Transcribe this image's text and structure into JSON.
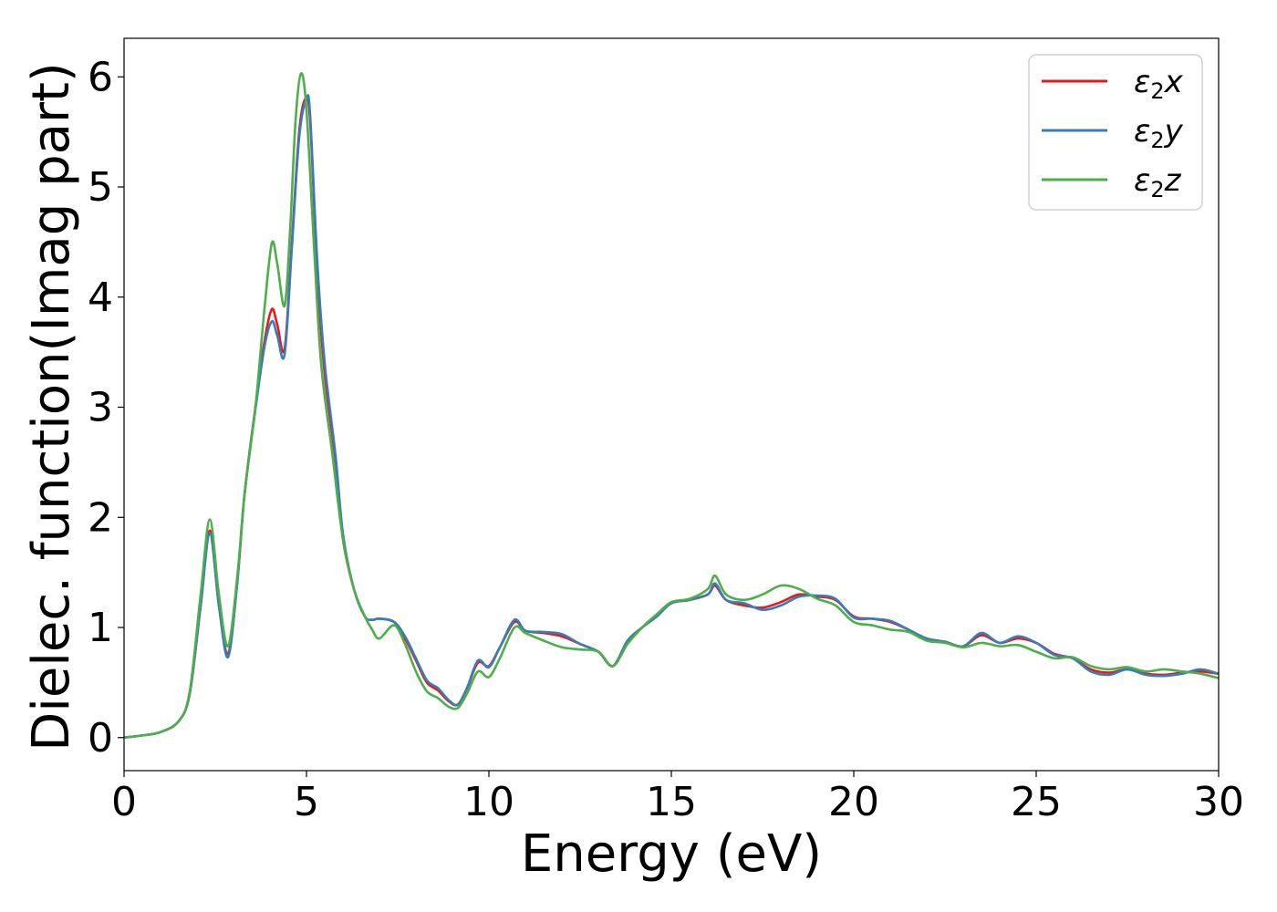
{
  "chart_data": {
    "type": "line",
    "title": "",
    "xlabel": "Energy (eV)",
    "ylabel": "Dielec. function(Imag part)",
    "xlim": [
      0,
      30
    ],
    "ylim": [
      -0.3,
      6.35
    ],
    "xticks": [
      0,
      5,
      10,
      15,
      20,
      25,
      30
    ],
    "yticks": [
      0,
      1,
      2,
      3,
      4,
      5,
      6
    ],
    "grid": false,
    "legend_position": "top-right",
    "series": [
      {
        "name": "ε₂x",
        "legend_base": "ε",
        "legend_sub": "2",
        "legend_var": "x",
        "color": "#e41a1c",
        "points": [
          [
            0,
            0
          ],
          [
            0.5,
            0.02
          ],
          [
            1.0,
            0.05
          ],
          [
            1.5,
            0.15
          ],
          [
            1.8,
            0.4
          ],
          [
            2.1,
            1.2
          ],
          [
            2.35,
            1.88
          ],
          [
            2.6,
            1.2
          ],
          [
            2.85,
            0.76
          ],
          [
            3.1,
            1.4
          ],
          [
            3.3,
            2.2
          ],
          [
            3.6,
            3.0
          ],
          [
            3.85,
            3.6
          ],
          [
            4.05,
            3.89
          ],
          [
            4.2,
            3.75
          ],
          [
            4.4,
            3.53
          ],
          [
            4.6,
            4.5
          ],
          [
            4.8,
            5.5
          ],
          [
            4.97,
            5.8
          ],
          [
            5.1,
            5.6
          ],
          [
            5.3,
            4.2
          ],
          [
            5.5,
            3.3
          ],
          [
            5.8,
            2.5
          ],
          [
            6.0,
            1.8
          ],
          [
            6.3,
            1.35
          ],
          [
            6.6,
            1.1
          ],
          [
            6.8,
            1.07
          ],
          [
            7.0,
            1.08
          ],
          [
            7.4,
            1.05
          ],
          [
            7.7,
            0.9
          ],
          [
            8.0,
            0.7
          ],
          [
            8.3,
            0.5
          ],
          [
            8.6,
            0.43
          ],
          [
            8.9,
            0.33
          ],
          [
            9.15,
            0.3
          ],
          [
            9.4,
            0.45
          ],
          [
            9.7,
            0.68
          ],
          [
            10.0,
            0.65
          ],
          [
            10.3,
            0.82
          ],
          [
            10.7,
            1.05
          ],
          [
            11.0,
            0.97
          ],
          [
            11.5,
            0.95
          ],
          [
            12.0,
            0.92
          ],
          [
            12.5,
            0.85
          ],
          [
            13.0,
            0.78
          ],
          [
            13.4,
            0.65
          ],
          [
            13.8,
            0.88
          ],
          [
            14.2,
            1.0
          ],
          [
            14.6,
            1.1
          ],
          [
            15.0,
            1.22
          ],
          [
            15.5,
            1.25
          ],
          [
            16.0,
            1.3
          ],
          [
            16.2,
            1.38
          ],
          [
            16.5,
            1.25
          ],
          [
            17.0,
            1.2
          ],
          [
            17.5,
            1.18
          ],
          [
            18.0,
            1.23
          ],
          [
            18.5,
            1.3
          ],
          [
            19.0,
            1.28
          ],
          [
            19.5,
            1.25
          ],
          [
            20.0,
            1.1
          ],
          [
            20.5,
            1.08
          ],
          [
            21.0,
            1.05
          ],
          [
            21.5,
            0.98
          ],
          [
            22.0,
            0.9
          ],
          [
            22.5,
            0.87
          ],
          [
            23.0,
            0.83
          ],
          [
            23.5,
            0.93
          ],
          [
            24.0,
            0.86
          ],
          [
            24.5,
            0.9
          ],
          [
            25.0,
            0.86
          ],
          [
            25.5,
            0.76
          ],
          [
            26.0,
            0.72
          ],
          [
            26.5,
            0.62
          ],
          [
            27.0,
            0.59
          ],
          [
            27.5,
            0.62
          ],
          [
            28.0,
            0.58
          ],
          [
            28.5,
            0.57
          ],
          [
            29.0,
            0.59
          ],
          [
            29.5,
            0.6
          ],
          [
            30.0,
            0.58
          ]
        ]
      },
      {
        "name": "ε₂y",
        "legend_base": "ε",
        "legend_sub": "2",
        "legend_var": "y",
        "color": "#377eb8",
        "points": [
          [
            0,
            0
          ],
          [
            0.5,
            0.02
          ],
          [
            1.0,
            0.05
          ],
          [
            1.5,
            0.15
          ],
          [
            1.8,
            0.4
          ],
          [
            2.1,
            1.2
          ],
          [
            2.35,
            1.85
          ],
          [
            2.6,
            1.2
          ],
          [
            2.85,
            0.73
          ],
          [
            3.1,
            1.4
          ],
          [
            3.3,
            2.2
          ],
          [
            3.6,
            2.98
          ],
          [
            3.85,
            3.55
          ],
          [
            4.05,
            3.78
          ],
          [
            4.2,
            3.65
          ],
          [
            4.4,
            3.48
          ],
          [
            4.6,
            4.45
          ],
          [
            4.8,
            5.45
          ],
          [
            5.0,
            5.8
          ],
          [
            5.1,
            5.65
          ],
          [
            5.3,
            4.3
          ],
          [
            5.5,
            3.4
          ],
          [
            5.8,
            2.55
          ],
          [
            6.0,
            1.85
          ],
          [
            6.3,
            1.35
          ],
          [
            6.6,
            1.1
          ],
          [
            6.8,
            1.07
          ],
          [
            7.0,
            1.08
          ],
          [
            7.4,
            1.05
          ],
          [
            7.7,
            0.92
          ],
          [
            8.0,
            0.72
          ],
          [
            8.3,
            0.52
          ],
          [
            8.6,
            0.45
          ],
          [
            8.9,
            0.34
          ],
          [
            9.15,
            0.3
          ],
          [
            9.4,
            0.45
          ],
          [
            9.7,
            0.7
          ],
          [
            10.0,
            0.64
          ],
          [
            10.3,
            0.82
          ],
          [
            10.7,
            1.07
          ],
          [
            11.0,
            0.97
          ],
          [
            11.5,
            0.96
          ],
          [
            12.0,
            0.94
          ],
          [
            12.5,
            0.85
          ],
          [
            13.0,
            0.78
          ],
          [
            13.4,
            0.65
          ],
          [
            13.8,
            0.88
          ],
          [
            14.2,
            1.0
          ],
          [
            14.6,
            1.1
          ],
          [
            15.0,
            1.22
          ],
          [
            15.5,
            1.25
          ],
          [
            16.0,
            1.3
          ],
          [
            16.2,
            1.4
          ],
          [
            16.5,
            1.25
          ],
          [
            17.0,
            1.22
          ],
          [
            17.5,
            1.16
          ],
          [
            18.0,
            1.2
          ],
          [
            18.5,
            1.28
          ],
          [
            19.0,
            1.29
          ],
          [
            19.5,
            1.26
          ],
          [
            20.0,
            1.09
          ],
          [
            20.5,
            1.08
          ],
          [
            21.0,
            1.06
          ],
          [
            21.5,
            0.98
          ],
          [
            22.0,
            0.9
          ],
          [
            22.5,
            0.87
          ],
          [
            23.0,
            0.83
          ],
          [
            23.5,
            0.95
          ],
          [
            24.0,
            0.86
          ],
          [
            24.5,
            0.92
          ],
          [
            25.0,
            0.86
          ],
          [
            25.5,
            0.75
          ],
          [
            26.0,
            0.72
          ],
          [
            26.5,
            0.6
          ],
          [
            27.0,
            0.57
          ],
          [
            27.5,
            0.62
          ],
          [
            28.0,
            0.57
          ],
          [
            28.5,
            0.56
          ],
          [
            29.0,
            0.58
          ],
          [
            29.5,
            0.62
          ],
          [
            30.0,
            0.58
          ]
        ]
      },
      {
        "name": "ε₂z",
        "legend_base": "ε",
        "legend_sub": "2",
        "legend_var": "z",
        "color": "#4daf4a",
        "points": [
          [
            0,
            0
          ],
          [
            0.5,
            0.02
          ],
          [
            1.0,
            0.05
          ],
          [
            1.5,
            0.15
          ],
          [
            1.8,
            0.42
          ],
          [
            2.1,
            1.3
          ],
          [
            2.35,
            1.98
          ],
          [
            2.6,
            1.3
          ],
          [
            2.85,
            0.83
          ],
          [
            3.1,
            1.45
          ],
          [
            3.3,
            2.2
          ],
          [
            3.6,
            3.0
          ],
          [
            3.85,
            3.9
          ],
          [
            4.05,
            4.49
          ],
          [
            4.2,
            4.3
          ],
          [
            4.4,
            3.92
          ],
          [
            4.55,
            4.6
          ],
          [
            4.7,
            5.6
          ],
          [
            4.85,
            6.03
          ],
          [
            5.0,
            5.7
          ],
          [
            5.2,
            4.5
          ],
          [
            5.4,
            3.4
          ],
          [
            5.7,
            2.6
          ],
          [
            6.0,
            1.8
          ],
          [
            6.3,
            1.35
          ],
          [
            6.6,
            1.1
          ],
          [
            6.8,
            0.98
          ],
          [
            7.0,
            0.9
          ],
          [
            7.4,
            1.02
          ],
          [
            7.7,
            0.85
          ],
          [
            8.0,
            0.6
          ],
          [
            8.3,
            0.42
          ],
          [
            8.6,
            0.36
          ],
          [
            8.9,
            0.28
          ],
          [
            9.15,
            0.27
          ],
          [
            9.4,
            0.4
          ],
          [
            9.7,
            0.6
          ],
          [
            10.0,
            0.55
          ],
          [
            10.3,
            0.72
          ],
          [
            10.7,
            1.0
          ],
          [
            11.0,
            0.95
          ],
          [
            11.5,
            0.88
          ],
          [
            12.0,
            0.82
          ],
          [
            12.5,
            0.8
          ],
          [
            13.0,
            0.78
          ],
          [
            13.4,
            0.65
          ],
          [
            13.8,
            0.85
          ],
          [
            14.2,
            1.0
          ],
          [
            14.6,
            1.12
          ],
          [
            15.0,
            1.23
          ],
          [
            15.5,
            1.26
          ],
          [
            16.0,
            1.35
          ],
          [
            16.2,
            1.47
          ],
          [
            16.5,
            1.3
          ],
          [
            17.0,
            1.25
          ],
          [
            17.5,
            1.3
          ],
          [
            18.0,
            1.38
          ],
          [
            18.5,
            1.35
          ],
          [
            19.0,
            1.26
          ],
          [
            19.5,
            1.2
          ],
          [
            20.0,
            1.05
          ],
          [
            20.5,
            1.02
          ],
          [
            21.0,
            0.98
          ],
          [
            21.5,
            0.96
          ],
          [
            22.0,
            0.88
          ],
          [
            22.5,
            0.86
          ],
          [
            23.0,
            0.82
          ],
          [
            23.5,
            0.86
          ],
          [
            24.0,
            0.83
          ],
          [
            24.5,
            0.84
          ],
          [
            25.0,
            0.78
          ],
          [
            25.5,
            0.72
          ],
          [
            26.0,
            0.73
          ],
          [
            26.5,
            0.65
          ],
          [
            27.0,
            0.62
          ],
          [
            27.5,
            0.64
          ],
          [
            28.0,
            0.6
          ],
          [
            28.5,
            0.62
          ],
          [
            29.0,
            0.6
          ],
          [
            29.5,
            0.58
          ],
          [
            30.0,
            0.54
          ]
        ]
      }
    ]
  }
}
